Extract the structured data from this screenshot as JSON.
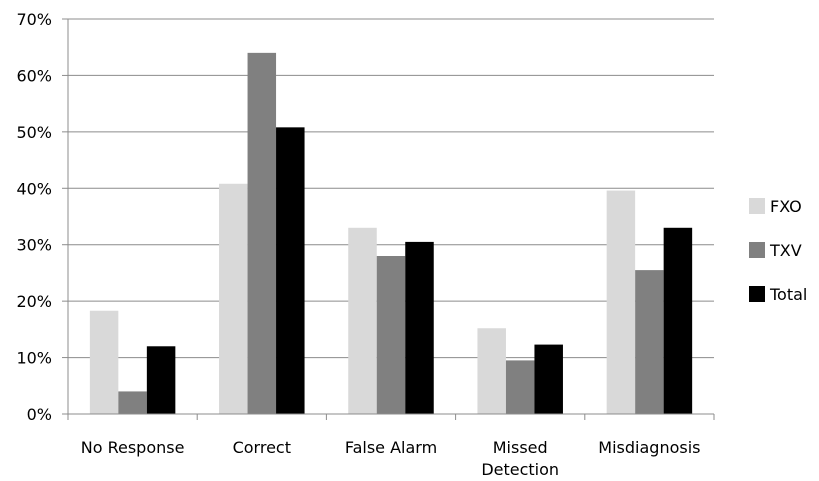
{
  "chart_data": {
    "type": "bar",
    "categories": [
      [
        "No Response"
      ],
      [
        "Correct"
      ],
      [
        "False Alarm"
      ],
      [
        "Missed",
        "Detection"
      ],
      [
        "Misdiagnosis"
      ]
    ],
    "series": [
      {
        "name": "FXO",
        "color": "#d9d9d9",
        "values": [
          18.3,
          40.8,
          33.0,
          15.2,
          39.6
        ]
      },
      {
        "name": "TXV",
        "color": "#808080",
        "values": [
          4.0,
          64.0,
          28.0,
          9.5,
          25.5
        ]
      },
      {
        "name": "Total",
        "color": "#000000",
        "values": [
          12.0,
          50.8,
          30.5,
          12.3,
          33.0
        ]
      }
    ],
    "ylim": [
      0,
      70
    ],
    "yticks": [
      "0%",
      "10%",
      "20%",
      "30%",
      "40%",
      "50%",
      "60%",
      "70%"
    ],
    "grid": true,
    "legend_position": "right"
  }
}
